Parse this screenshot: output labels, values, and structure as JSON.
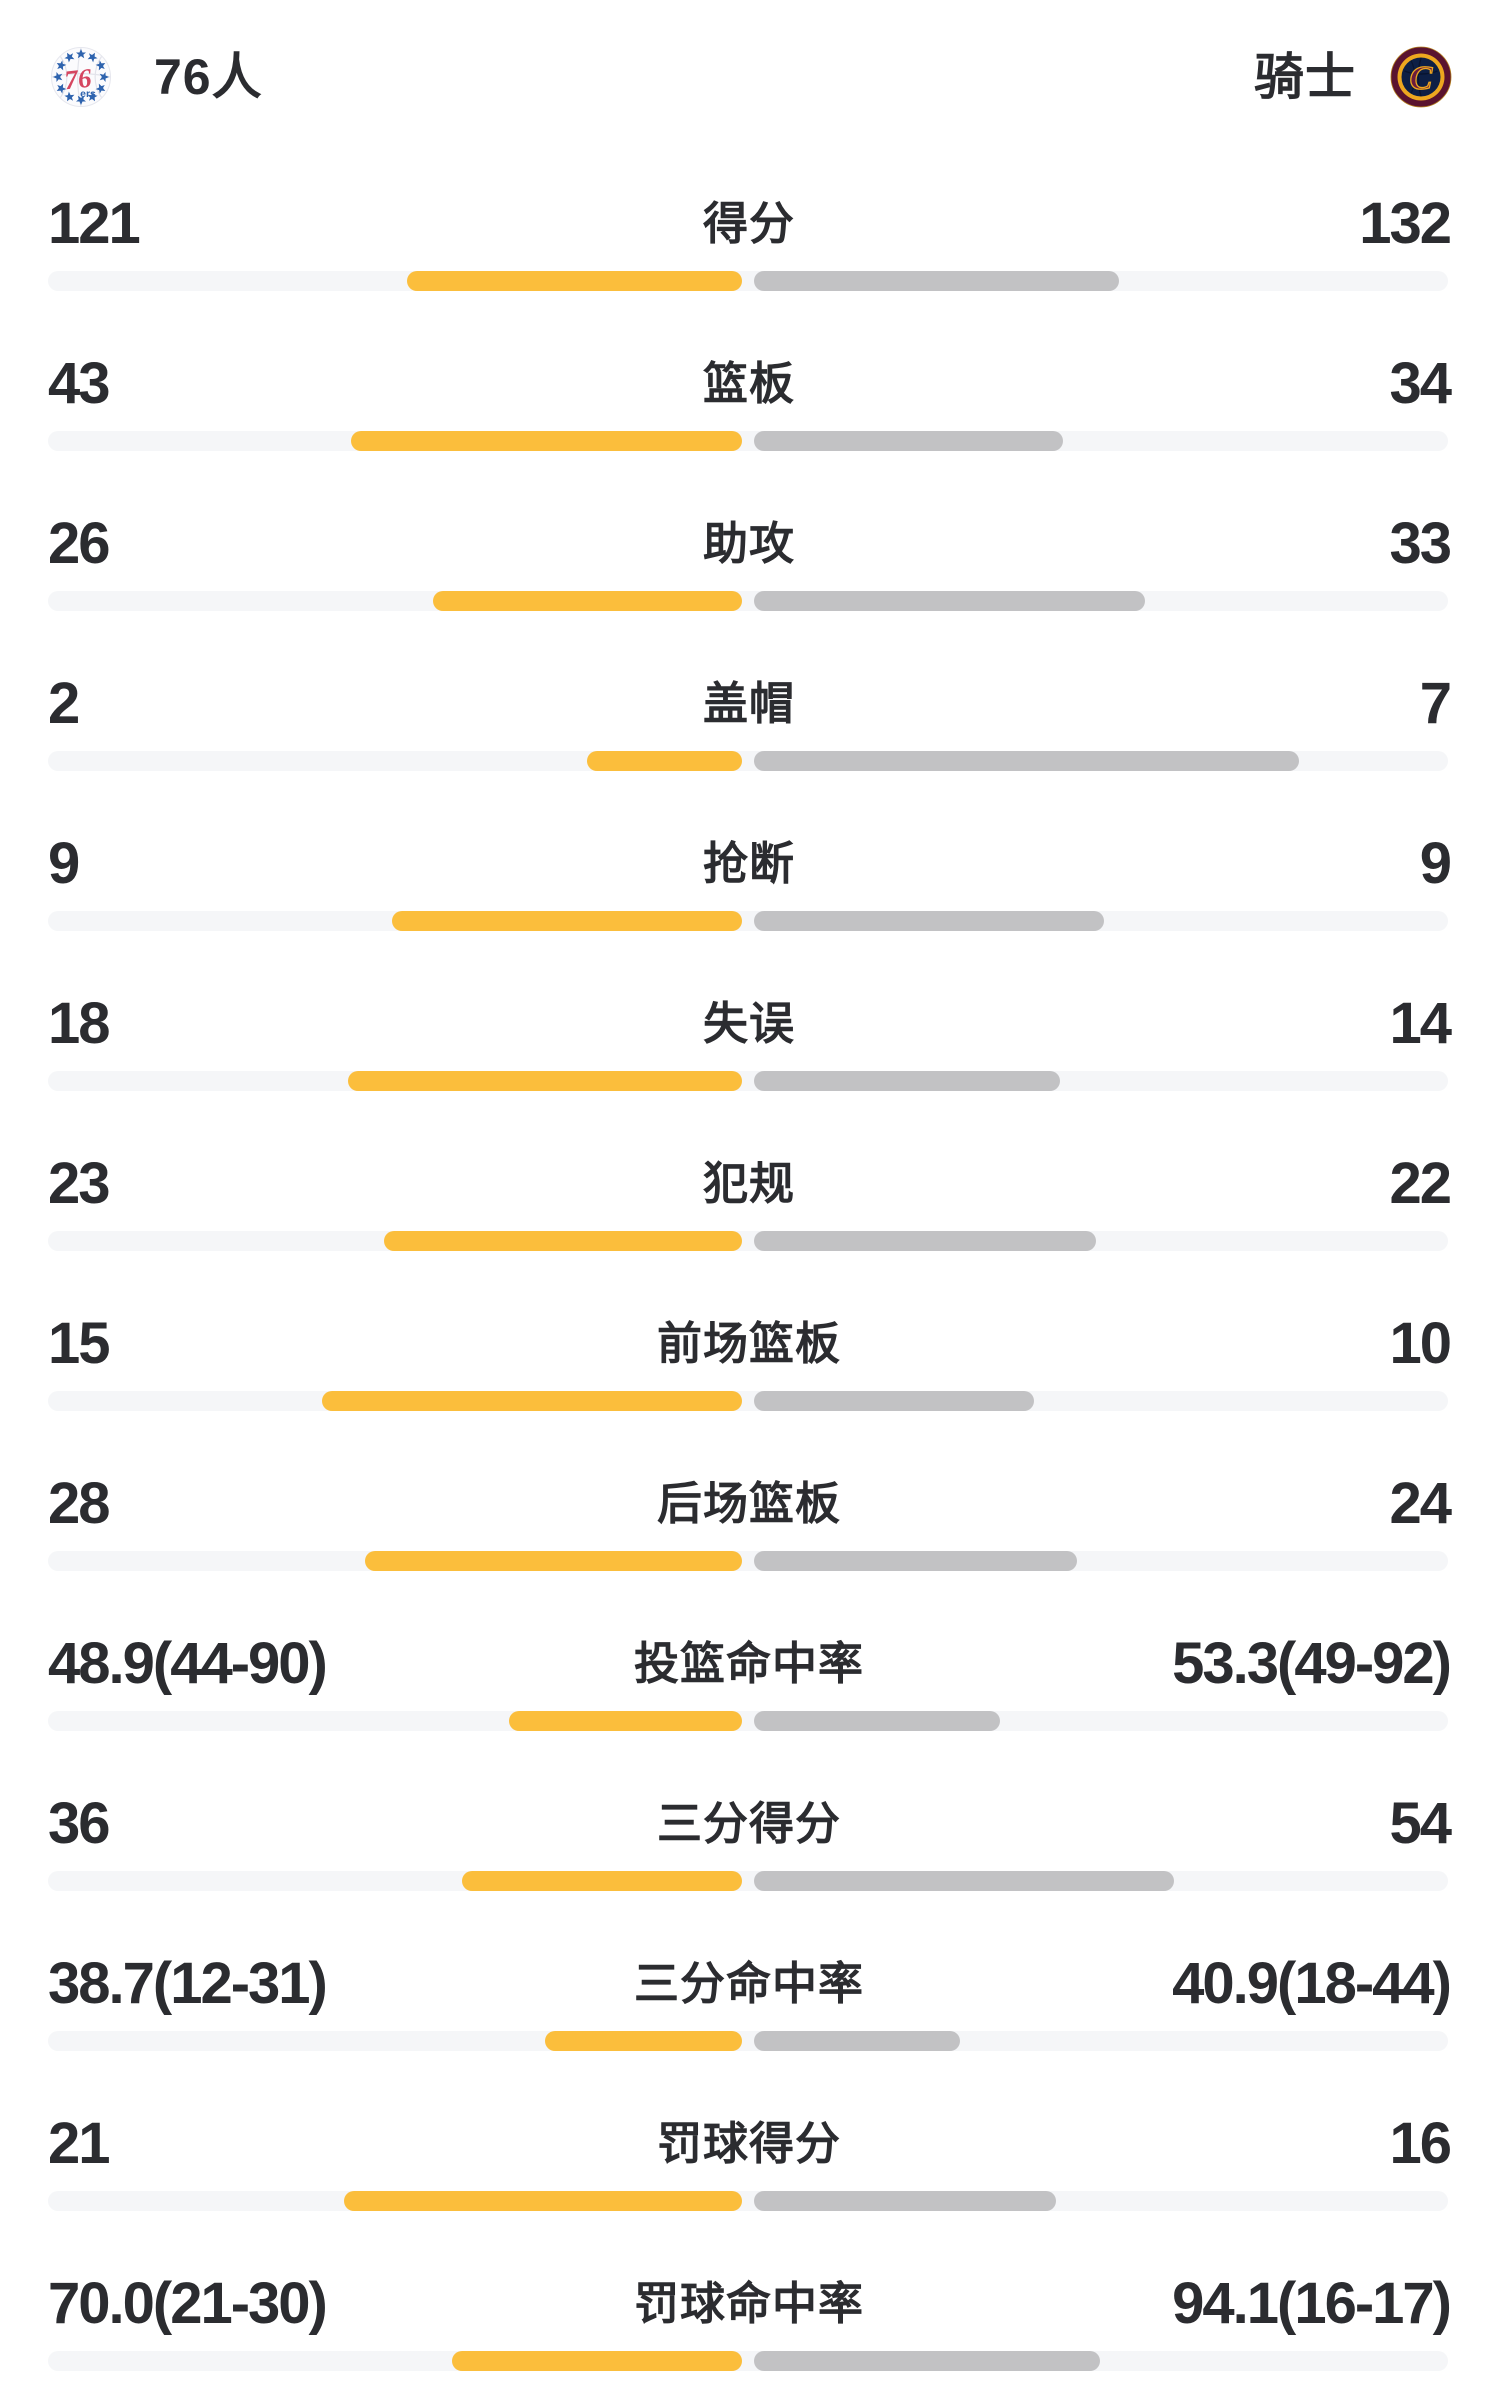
{
  "header": {
    "left_team": {
      "name": "76人",
      "logo": "sixers-logo"
    },
    "right_team": {
      "name": "骑士",
      "logo": "cavaliers-logo"
    }
  },
  "colors": {
    "left_bar": "#FBBE3C",
    "right_bar": "#C2C2C4",
    "track": "#F5F6F8",
    "text": "#2B2C30",
    "sixers_blue": "#2E63AE",
    "sixers_red": "#D54660",
    "cavs_wine": "#5A132F",
    "cavs_gold": "#EDA71F",
    "cavs_navy": "#0D1F45"
  },
  "chart_data": {
    "type": "bar",
    "layout": "paired horizontal bars anchored at center; left team yellow grows leftward, right team gray grows rightward over a full-width light track",
    "left_series": "76人",
    "right_series": "骑士",
    "rows": [
      {
        "label": "得分",
        "left": "121",
        "right": "132",
        "left_num": 121,
        "right_num": 132,
        "left_bar_pct": 47.8,
        "right_bar_pct": 52.2
      },
      {
        "label": "篮板",
        "left": "43",
        "right": "34",
        "left_num": 43,
        "right_num": 34,
        "left_bar_pct": 55.8,
        "right_bar_pct": 44.2
      },
      {
        "label": "助攻",
        "left": "26",
        "right": "33",
        "left_num": 26,
        "right_num": 33,
        "left_bar_pct": 44.1,
        "right_bar_pct": 55.9
      },
      {
        "label": "盖帽",
        "left": "2",
        "right": "7",
        "left_num": 2,
        "right_num": 7,
        "left_bar_pct": 22.2,
        "right_bar_pct": 77.8
      },
      {
        "label": "抢断",
        "left": "9",
        "right": "9",
        "left_num": 9,
        "right_num": 9,
        "left_bar_pct": 50.0,
        "right_bar_pct": 50.0
      },
      {
        "label": "失误",
        "left": "18",
        "right": "14",
        "left_num": 18,
        "right_num": 14,
        "left_bar_pct": 56.3,
        "right_bar_pct": 43.7
      },
      {
        "label": "犯规",
        "left": "23",
        "right": "22",
        "left_num": 23,
        "right_num": 22,
        "left_bar_pct": 51.1,
        "right_bar_pct": 48.9
      },
      {
        "label": "前场篮板",
        "left": "15",
        "right": "10",
        "left_num": 15,
        "right_num": 10,
        "left_bar_pct": 60.0,
        "right_bar_pct": 40.0
      },
      {
        "label": "后场篮板",
        "left": "28",
        "right": "24",
        "left_num": 28,
        "right_num": 24,
        "left_bar_pct": 53.8,
        "right_bar_pct": 46.2
      },
      {
        "label": "投篮命中率",
        "left": "48.9(44-90)",
        "right": "53.3(49-92)",
        "left_num": 48.9,
        "right_num": 53.3,
        "left_bar_pct": 33.3,
        "right_bar_pct": 35.2
      },
      {
        "label": "三分得分",
        "left": "36",
        "right": "54",
        "left_num": 36,
        "right_num": 54,
        "left_bar_pct": 40.0,
        "right_bar_pct": 60.0
      },
      {
        "label": "三分命中率",
        "left": "38.7(12-31)",
        "right": "40.9(18-44)",
        "left_num": 38.7,
        "right_num": 40.9,
        "left_bar_pct": 28.2,
        "right_bar_pct": 29.4
      },
      {
        "label": "罚球得分",
        "left": "21",
        "right": "16",
        "left_num": 21,
        "right_num": 16,
        "left_bar_pct": 56.8,
        "right_bar_pct": 43.2
      },
      {
        "label": "罚球命中率",
        "left": "70.0(21-30)",
        "right": "94.1(16-17)",
        "left_num": 70.0,
        "right_num": 94.1,
        "left_bar_pct": 41.5,
        "right_bar_pct": 49.4
      }
    ]
  }
}
